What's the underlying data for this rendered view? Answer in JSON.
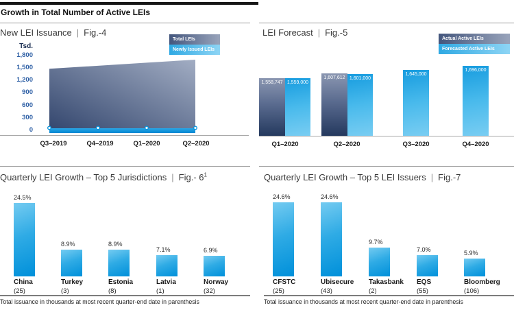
{
  "page": {
    "heading": "Growth in Total Number of Active LEIs",
    "title_separator": "|",
    "footnote": "Total issuance in thousands at most recent quarter-end date in parenthesis"
  },
  "colors": {
    "accent_blue": "#0095dc",
    "light_bar_top": "#74cbf1",
    "light_bar_bottom": "#0090da",
    "dark_bar_top": "#8b97b1",
    "dark_bar_bottom": "#24395e",
    "axis_tick_blue": "#2d5fa5",
    "axis_line_gray": "#a8a8a8",
    "text_dark": "#1a1a1a"
  },
  "fig4": {
    "title": "New LEI Issuance",
    "fig_label": "Fig.-4",
    "unit_label": "Tsd.",
    "legend": [
      "Total LEIs",
      "Newly Issued LEIs"
    ]
  },
  "fig5": {
    "title": "LEI Forecast",
    "fig_label": "Fig.-5",
    "legend": [
      "Actual Active LEIs",
      "Forecasted Active LEIs"
    ]
  },
  "fig6": {
    "title": "Quarterly LEI Growth – Top 5 Jurisdictions",
    "fig_label": "Fig.- 6",
    "fig_superscript": "1"
  },
  "fig7": {
    "title": "Quarterly LEI Growth – Top 5 LEI Issuers",
    "fig_label": "Fig.-7"
  },
  "chart_data": [
    {
      "id": "fig4",
      "type": "area",
      "title": "New LEI Issuance",
      "x": [
        "Q3–2019",
        "Q4–2019",
        "Q1–2020",
        "Q2–2020"
      ],
      "ylabel": "Tsd.",
      "yticks": [
        "1,800",
        "1,500",
        "1,200",
        "900",
        "600",
        "300",
        "0"
      ],
      "ylim": [
        0,
        1800
      ],
      "grid": false,
      "legend_position": "top-right",
      "series": [
        {
          "name": "Total LEIs",
          "style": "dark-area",
          "values_tsd": [
            1480,
            1550,
            1620,
            1690
          ]
        },
        {
          "name": "Newly Issued LEIs",
          "style": "light-band-with-markers",
          "values_tsd": [
            33,
            38,
            45,
            40
          ]
        }
      ]
    },
    {
      "id": "fig5",
      "type": "bar",
      "title": "LEI Forecast",
      "categories": [
        "Q1–2020",
        "Q2–2020",
        "Q3–2020",
        "Q4–2020"
      ],
      "legend_position": "top-right",
      "series": [
        {
          "name": "Actual Active LEIs",
          "values": [
            1558747,
            1607612,
            null,
            null
          ],
          "labels": [
            "1,558,747",
            "1,607,612",
            null,
            null
          ]
        },
        {
          "name": "Forecasted Active LEIs",
          "values": [
            1559000,
            1601000,
            1645000,
            1696000
          ],
          "labels": [
            "1,559,000",
            "1,601,000",
            "1,645,000",
            "1,696,000"
          ]
        }
      ]
    },
    {
      "id": "fig6",
      "type": "bar",
      "title": "Quarterly LEI Growth – Top 5 Jurisdictions",
      "categories": [
        "China",
        "Turkey",
        "Estonia",
        "Latvia",
        "Norway"
      ],
      "values_pct": [
        24.5,
        8.9,
        8.9,
        7.1,
        6.9
      ],
      "value_labels": [
        "24.5%",
        "8.9%",
        "8.9%",
        "7.1%",
        "6.9%"
      ],
      "issuance_thousands_labels": [
        "(25)",
        "(3)",
        "(8)",
        "(1)",
        "(32)"
      ]
    },
    {
      "id": "fig7",
      "type": "bar",
      "title": "Quarterly LEI Growth – Top 5 LEI Issuers",
      "categories": [
        "CFSTC",
        "Ubisecure",
        "Takasbank",
        "EQS",
        "Bloomberg"
      ],
      "values_pct": [
        24.6,
        24.6,
        9.7,
        7.0,
        5.9
      ],
      "value_labels": [
        "24.6%",
        "24.6%",
        "9.7%",
        "7.0%",
        "5.9%"
      ],
      "issuance_thousands_labels": [
        "(25)",
        "(43)",
        "(2)",
        "(55)",
        "(106)"
      ]
    }
  ]
}
